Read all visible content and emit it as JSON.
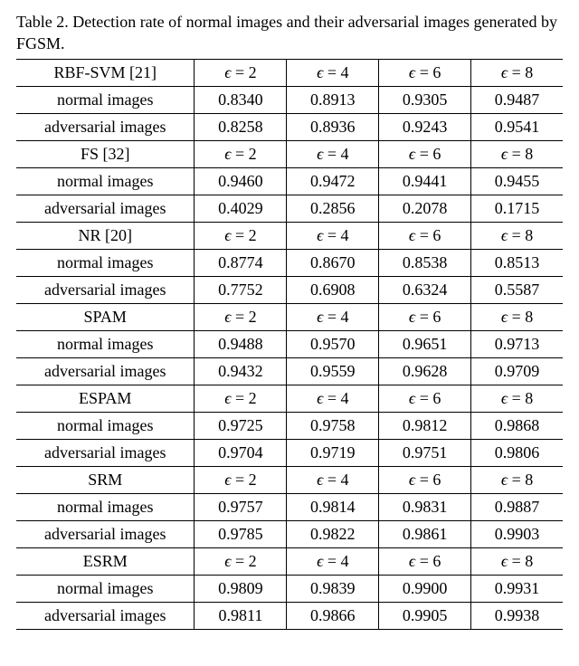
{
  "caption": "Table 2. Detection rate of normal images and their adversarial images generated by FGSM.",
  "eps_labels_html": [
    "ϵ = 2",
    "ϵ = 4",
    "ϵ = 6",
    "ϵ = 8"
  ],
  "row_labels": {
    "normal": "normal images",
    "adv": "adversarial images"
  },
  "methods": [
    {
      "name": "RBF-SVM [21]",
      "normal": [
        0.834,
        0.8913,
        0.9305,
        0.9487
      ],
      "adv": [
        0.8258,
        0.8936,
        0.9243,
        0.9541
      ]
    },
    {
      "name": "FS [32]",
      "normal": [
        0.946,
        0.9472,
        0.9441,
        0.9455
      ],
      "adv": [
        0.4029,
        0.2856,
        0.2078,
        0.1715
      ]
    },
    {
      "name": "NR [20]",
      "normal": [
        0.8774,
        0.867,
        0.8538,
        0.8513
      ],
      "adv": [
        0.7752,
        0.6908,
        0.6324,
        0.5587
      ]
    },
    {
      "name": "SPAM",
      "normal": [
        0.9488,
        0.957,
        0.9651,
        0.9713
      ],
      "adv": [
        0.9432,
        0.9559,
        0.9628,
        0.9709
      ]
    },
    {
      "name": "ESPAM",
      "normal": [
        0.9725,
        0.9758,
        0.9812,
        0.9868
      ],
      "adv": [
        0.9704,
        0.9719,
        0.9751,
        0.9806
      ]
    },
    {
      "name": "SRM",
      "normal": [
        0.9757,
        0.9814,
        0.9831,
        0.9887
      ],
      "adv": [
        0.9785,
        0.9822,
        0.9861,
        0.9903
      ]
    },
    {
      "name": "ESRM",
      "normal": [
        0.9809,
        0.9839,
        0.99,
        0.9931
      ],
      "adv": [
        0.9811,
        0.9866,
        0.9905,
        0.9938
      ]
    }
  ],
  "style": {
    "font_family": "Times New Roman",
    "font_size_pt": 18,
    "text_color": "#000000",
    "background_color": "#ffffff",
    "border_color": "#000000",
    "decimal_places": 4,
    "col_widths_pct": [
      34,
      16.5,
      16.5,
      16.5,
      16.5
    ],
    "epsilon_glyph": "ϵ"
  }
}
